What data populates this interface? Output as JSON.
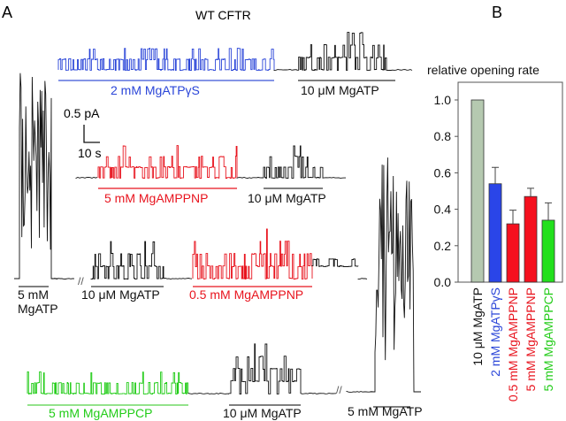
{
  "panel_a": {
    "letter": "A",
    "title": "WT CFTR",
    "scale_bar": {
      "current_label": "0.5 pA",
      "time_label": "10 s"
    },
    "colors": {
      "black": "#111111",
      "blue": "#2a45d8",
      "red": "#e8141e",
      "green": "#22cc18"
    },
    "traces": [
      {
        "id": "trace-row1-atpgs",
        "label": "2 mM MgATPγS",
        "color": "blue"
      },
      {
        "id": "trace-row1-atp",
        "label": "10 μM MgATP",
        "color": "black"
      },
      {
        "id": "trace-row2-amppnp5",
        "label": "5 mM MgAMPPNP",
        "color": "red"
      },
      {
        "id": "trace-row2-atp",
        "label": "10 μM MgATP",
        "color": "black"
      },
      {
        "id": "trace-row3-atp5",
        "label_line1": "5 mM",
        "label_line2": "MgATP",
        "color": "black"
      },
      {
        "id": "trace-row3-atp",
        "label": "10 μM MgATP",
        "color": "black"
      },
      {
        "id": "trace-row3-amppnp05",
        "label": "0.5 mM MgAMPPNP",
        "color": "red"
      },
      {
        "id": "trace-row4-amppcp",
        "label": "5 mM MgAMPPCP",
        "color": "green"
      },
      {
        "id": "trace-row4-atp",
        "label": "10 μM MgATP",
        "color": "black"
      },
      {
        "id": "trace-row4-atp5",
        "label": "5 mM MgATP",
        "color": "black"
      }
    ]
  },
  "panel_b": {
    "letter": "B"
  },
  "chart_data": {
    "type": "bar",
    "title": "relative opening rate",
    "xlabel": "",
    "ylabel": "",
    "ylim": [
      0,
      1.1
    ],
    "yticks": [
      0.0,
      0.2,
      0.4,
      0.6,
      0.8,
      1.0
    ],
    "ytick_labels": [
      "0.0",
      "0.2",
      "0.4",
      "0.6",
      "0.8",
      "1.0"
    ],
    "grid": false,
    "categories": [
      "10 μM MgATP",
      "2 mM MgATPγS",
      "0.5 mM MgAMPPNP",
      "5 mM MgAMPPNP",
      "5 mM MgAMPPCP"
    ],
    "values": [
      1.0,
      0.54,
      0.32,
      0.47,
      0.34
    ],
    "errors": [
      0.0,
      0.09,
      0.075,
      0.045,
      0.095
    ],
    "bar_colors": [
      "#b5c9b0",
      "#2a45e8",
      "#f5101e",
      "#f5101e",
      "#22e01c"
    ],
    "label_colors": [
      "#111111",
      "#2a45d8",
      "#e8141e",
      "#e8141e",
      "#22cc18"
    ]
  }
}
